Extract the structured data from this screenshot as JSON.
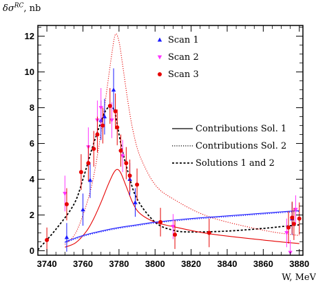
{
  "chart_data": {
    "type": "scatter",
    "title": "",
    "ylabel": "δσ^RC, nb",
    "xlabel": "W, MeV",
    "xlim": [
      3735,
      3882
    ],
    "ylim": [
      -0.25,
      12.6
    ],
    "xticks": [
      3740,
      3760,
      3780,
      3800,
      3820,
      3840,
      3860,
      3880
    ],
    "yticks": [
      0,
      2,
      4,
      6,
      8,
      10,
      12
    ],
    "grid": false,
    "legend_points_placement": "top-center",
    "legend_lines_placement": "middle-right",
    "series": [
      {
        "name": "Scan 1",
        "kind": "points",
        "marker": "triangle-up",
        "color": "#1a1aff",
        "points": [
          {
            "x": 3751,
            "y": 0.75,
            "err": 0.8
          },
          {
            "x": 3760,
            "y": 2.3,
            "err": 0.9
          },
          {
            "x": 3764,
            "y": 3.95,
            "err": 1.0
          },
          {
            "x": 3770,
            "y": 7.3,
            "err": 1.1
          },
          {
            "x": 3772,
            "y": 7.5,
            "err": 1.0
          },
          {
            "x": 3777,
            "y": 9.0,
            "err": 1.2
          },
          {
            "x": 3786,
            "y": 4.0,
            "err": 0.9
          },
          {
            "x": 3789,
            "y": 2.7,
            "err": 0.8
          },
          {
            "x": 3876,
            "y": 1.8,
            "err": 0.9
          }
        ]
      },
      {
        "name": "Scan 2",
        "kind": "points",
        "marker": "triangle-down",
        "color": "#ff33ff",
        "points": [
          {
            "x": 3750,
            "y": 3.2,
            "err": 1.0
          },
          {
            "x": 3763,
            "y": 5.8,
            "err": 1.1
          },
          {
            "x": 3768,
            "y": 7.3,
            "err": 1.1
          },
          {
            "x": 3770,
            "y": 8.0,
            "err": 1.1
          },
          {
            "x": 3776,
            "y": 7.3,
            "err": 1.0
          },
          {
            "x": 3782,
            "y": 5.3,
            "err": 0.9
          },
          {
            "x": 3810,
            "y": 1.35,
            "err": 0.7
          },
          {
            "x": 3873,
            "y": 1.0,
            "err": 0.8
          },
          {
            "x": 3875,
            "y": -0.1,
            "err": 0.7
          },
          {
            "x": 3878,
            "y": 2.3,
            "err": 0.8
          }
        ]
      },
      {
        "name": "Scan 3",
        "kind": "points",
        "marker": "circle",
        "color": "#e60000",
        "points": [
          {
            "x": 3740,
            "y": 0.6,
            "err": 0.7
          },
          {
            "x": 3751,
            "y": 2.6,
            "err": 0.9
          },
          {
            "x": 3759,
            "y": 4.4,
            "err": 1.0
          },
          {
            "x": 3763,
            "y": 4.9,
            "err": 1.0
          },
          {
            "x": 3766,
            "y": 5.7,
            "err": 1.0
          },
          {
            "x": 3768,
            "y": 6.5,
            "err": 1.0
          },
          {
            "x": 3771,
            "y": 7.0,
            "err": 1.0
          },
          {
            "x": 3775,
            "y": 8.1,
            "err": 1.0
          },
          {
            "x": 3778,
            "y": 7.8,
            "err": 1.0
          },
          {
            "x": 3779,
            "y": 6.9,
            "err": 1.0
          },
          {
            "x": 3781,
            "y": 5.6,
            "err": 0.9
          },
          {
            "x": 3784,
            "y": 4.9,
            "err": 0.9
          },
          {
            "x": 3786,
            "y": 4.2,
            "err": 0.9
          },
          {
            "x": 3790,
            "y": 3.7,
            "err": 0.9
          },
          {
            "x": 3803,
            "y": 1.6,
            "err": 0.8
          },
          {
            "x": 3811,
            "y": 0.9,
            "err": 0.8
          },
          {
            "x": 3830,
            "y": 1.0,
            "err": 0.8
          },
          {
            "x": 3874,
            "y": 1.3,
            "err": 0.9
          },
          {
            "x": 3876,
            "y": 1.85,
            "err": 0.9
          },
          {
            "x": 3877,
            "y": 1.5,
            "err": 0.9
          },
          {
            "x": 3880,
            "y": 1.8,
            "err": 0.9
          }
        ]
      },
      {
        "name": "Contributions Sol. 1",
        "kind": "line",
        "style": "solid",
        "color": "#000000",
        "x": [
          3750,
          3760,
          3770,
          3780,
          3800,
          3840,
          3880
        ],
        "y": [
          0,
          0,
          0,
          0,
          0,
          0,
          0
        ]
      },
      {
        "name": "Contributions Sol. 2",
        "kind": "line",
        "style": "dotted",
        "color": "#000000",
        "x": [
          3750,
          3760,
          3770,
          3780,
          3800,
          3840,
          3880
        ],
        "y": [
          0,
          0,
          0,
          0,
          0,
          0,
          0
        ]
      },
      {
        "name": "Solutions 1 and 2",
        "kind": "line",
        "style": "dashed",
        "color": "#000000",
        "x": [
          3735,
          3745,
          3755,
          3760,
          3765,
          3770,
          3773,
          3776,
          3778,
          3781,
          3785,
          3790,
          3800,
          3810,
          3820,
          3840,
          3860,
          3870,
          3880
        ],
        "y": [
          0.05,
          1.2,
          2.6,
          4.0,
          5.7,
          7.2,
          7.9,
          8.05,
          7.6,
          6.0,
          4.4,
          2.9,
          1.6,
          1.15,
          1.05,
          1.1,
          1.25,
          1.35,
          1.45
        ]
      },
      {
        "name": "",
        "kind": "line",
        "style": "solid",
        "color": "#e60000",
        "x": [
          3750,
          3756,
          3762,
          3766,
          3770,
          3774,
          3777,
          3779,
          3781,
          3784,
          3788,
          3792,
          3800,
          3810,
          3830,
          3860,
          3880
        ],
        "y": [
          0.2,
          0.45,
          1.1,
          1.8,
          2.7,
          3.7,
          4.35,
          4.55,
          4.35,
          3.6,
          2.6,
          2.05,
          1.6,
          1.35,
          0.95,
          0.6,
          0.4
        ]
      },
      {
        "name": "",
        "kind": "line",
        "style": "dotted",
        "color": "#e60000",
        "x": [
          3750,
          3756,
          3762,
          3766,
          3770,
          3773,
          3776,
          3778,
          3780,
          3782,
          3785,
          3788,
          3792,
          3800,
          3810,
          3830,
          3860,
          3880
        ],
        "y": [
          0.35,
          1.0,
          2.6,
          4.2,
          6.6,
          8.8,
          11.0,
          12.1,
          11.7,
          10.4,
          8.3,
          6.6,
          5.2,
          3.7,
          2.9,
          1.9,
          1.15,
          0.85
        ]
      },
      {
        "name": "",
        "kind": "line",
        "style": "solid",
        "color": "#1a1aff",
        "x": [
          3750,
          3760,
          3770,
          3780,
          3790,
          3800,
          3820,
          3840,
          3860,
          3880
        ],
        "y": [
          0.5,
          0.85,
          1.1,
          1.3,
          1.45,
          1.6,
          1.8,
          1.95,
          2.1,
          2.25
        ]
      },
      {
        "name": "",
        "kind": "line",
        "style": "dotted",
        "color": "#1a1aff",
        "x": [
          3750,
          3760,
          3770,
          3780,
          3790,
          3800,
          3820,
          3840,
          3860,
          3880
        ],
        "y": [
          0.45,
          0.8,
          1.05,
          1.25,
          1.4,
          1.55,
          1.75,
          1.9,
          2.05,
          2.2
        ]
      }
    ]
  }
}
